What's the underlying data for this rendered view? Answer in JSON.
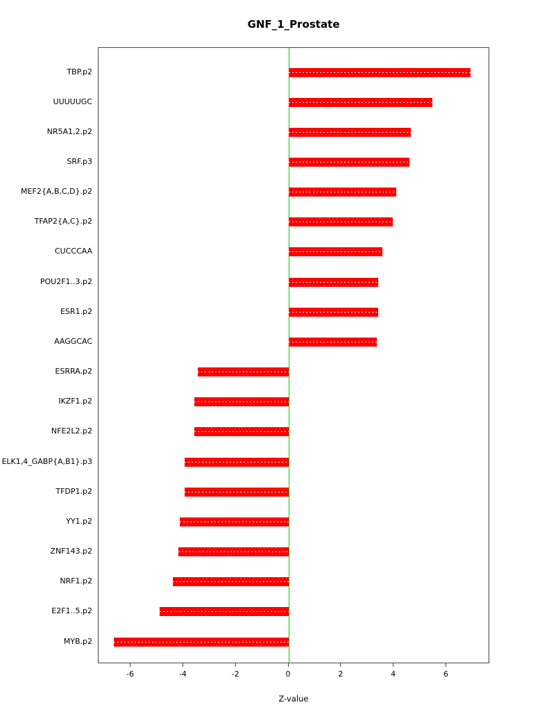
{
  "title": "GNF_1_Prostate",
  "chart_data": {
    "type": "bar",
    "orientation": "horizontal",
    "title": "GNF_1_Prostate",
    "xlabel": "Z-value",
    "ylabel": "",
    "categories": [
      "TBP.p2",
      "UUUUUGC",
      "NR5A1,2.p2",
      "SRF.p3",
      "MEF2{A,B,C,D}.p2",
      "TFAP2{A,C}.p2",
      "CUCCCAA",
      "POU2F1..3.p2",
      "ESR1.p2",
      "AAGGCAC",
      "ESRRA.p2",
      "IKZF1.p2",
      "NFE2L2.p2",
      "ELK1,4_GABP{A,B1}.p3",
      "TFDP1.p2",
      "YY1.p2",
      "ZNF143.p2",
      "NRF1.p2",
      "E2F1..5.p2",
      "MYB.p2"
    ],
    "values": [
      6.9,
      5.45,
      4.65,
      4.6,
      4.1,
      3.95,
      3.55,
      3.4,
      3.4,
      3.35,
      -3.45,
      -3.6,
      -3.6,
      -3.95,
      -3.95,
      -4.15,
      -4.2,
      -4.4,
      -4.9,
      -6.65
    ],
    "xlim": [
      -7.23,
      7.65
    ],
    "xticks": [
      -6,
      -4,
      -2,
      0,
      2,
      4,
      6
    ],
    "grid": false,
    "legend": "none",
    "bar_color": "#ff0000",
    "zero_line_color": "#00cc00",
    "box_color": "#444444"
  }
}
